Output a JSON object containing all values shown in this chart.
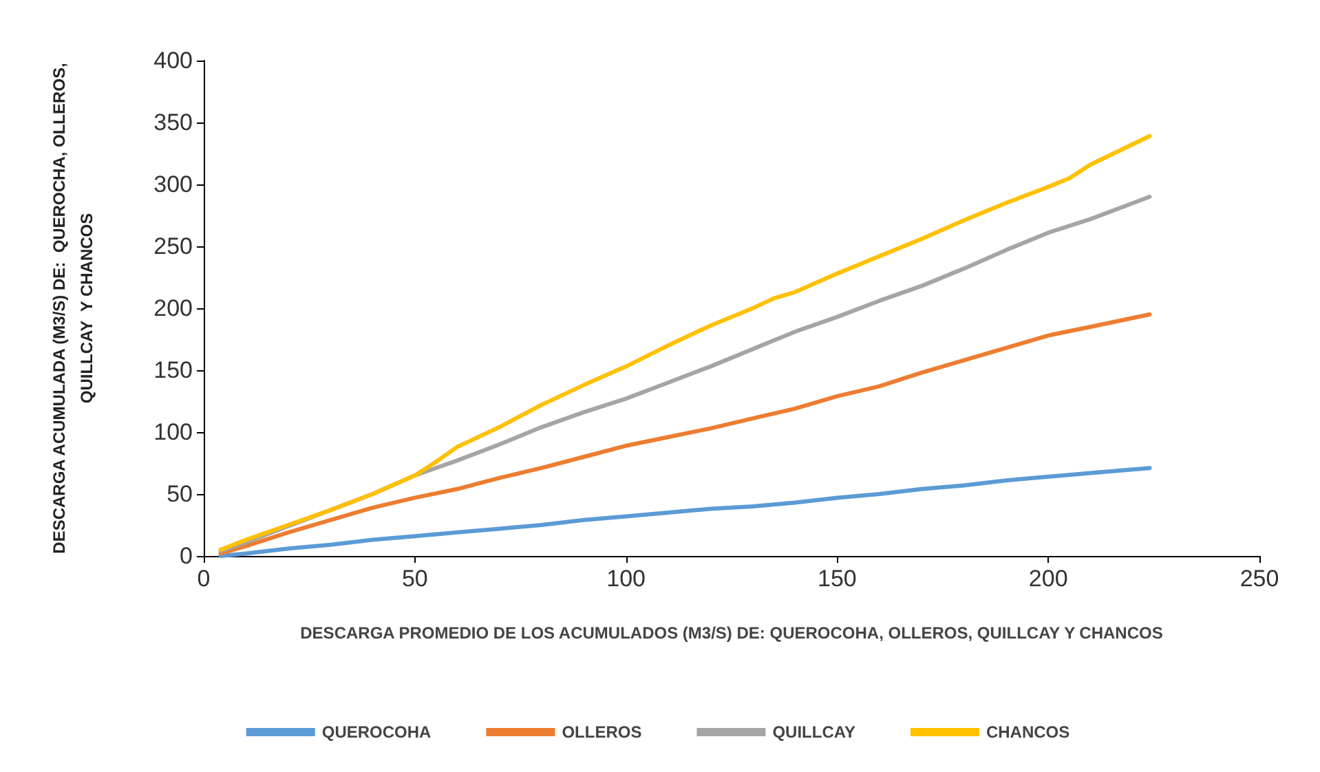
{
  "chart_data": {
    "type": "line",
    "xlabel": "DESCARGA PROMEDIO DE LOS ACUMULADOS (M3/S) DE: QUEROCOHA, OLLEROS, QUILLCAY Y CHANCOS",
    "ylabel": "DESCARGA ACUMULADA (M3/S) DE:  QUEROCHA, OLLEROS, QUILLCAY  Y CHANCOS",
    "xlim": [
      0,
      250
    ],
    "xticks": [
      0,
      50,
      100,
      150,
      200,
      250
    ],
    "ylim": [
      0,
      400
    ],
    "yticks": [
      0,
      50,
      100,
      150,
      200,
      250,
      300,
      350,
      400
    ],
    "grid": false,
    "legend": "bottom",
    "marker": "none",
    "line_style": "solid",
    "series": [
      {
        "name": "QUEROCOHA",
        "color": "#5b9bd5",
        "x": [
          4,
          10,
          20,
          30,
          40,
          50,
          60,
          70,
          80,
          90,
          100,
          110,
          120,
          130,
          140,
          150,
          160,
          170,
          180,
          190,
          200,
          210,
          224
        ],
        "values": [
          0,
          2,
          6,
          9,
          13,
          16,
          19,
          22,
          25,
          29,
          32,
          35,
          38,
          40,
          43,
          47,
          50,
          54,
          57,
          61,
          64,
          67,
          71
        ]
      },
      {
        "name": "OLLEROS",
        "color": "#ed7d31",
        "x": [
          4,
          10,
          20,
          30,
          40,
          50,
          60,
          70,
          80,
          90,
          100,
          110,
          120,
          130,
          140,
          150,
          160,
          170,
          180,
          190,
          200,
          210,
          224
        ],
        "values": [
          2,
          8,
          19,
          29,
          39,
          47,
          54,
          63,
          71,
          80,
          89,
          96,
          103,
          111,
          119,
          129,
          137,
          148,
          158,
          168,
          178,
          185,
          195
        ]
      },
      {
        "name": "QUILLCAY",
        "color": "#a5a5a5",
        "x": [
          4,
          10,
          20,
          30,
          40,
          50,
          60,
          70,
          80,
          90,
          100,
          110,
          120,
          130,
          135,
          140,
          150,
          160,
          170,
          180,
          190,
          200,
          210,
          224
        ],
        "values": [
          4,
          11,
          24,
          37,
          50,
          65,
          77,
          90,
          104,
          116,
          127,
          140,
          153,
          167,
          174,
          181,
          193,
          206,
          218,
          232,
          247,
          261,
          272,
          290
        ]
      },
      {
        "name": "CHANCOS",
        "color": "#ffc000",
        "x": [
          4,
          10,
          20,
          30,
          40,
          50,
          55,
          60,
          70,
          80,
          90,
          100,
          110,
          120,
          130,
          135,
          140,
          150,
          160,
          170,
          180,
          190,
          200,
          205,
          210,
          224
        ],
        "values": [
          5,
          13,
          25,
          37,
          50,
          65,
          76,
          88,
          104,
          122,
          138,
          153,
          170,
          186,
          200,
          208,
          213,
          228,
          242,
          256,
          271,
          285,
          298,
          305,
          316,
          339
        ]
      }
    ]
  }
}
